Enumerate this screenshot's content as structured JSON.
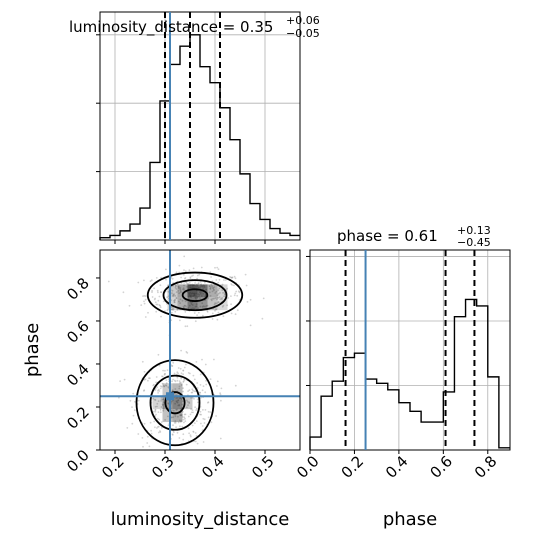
{
  "chart_data": {
    "type": "corner",
    "parameters": [
      "luminosity_distance",
      "phase"
    ],
    "truths": {
      "luminosity_distance": 0.31,
      "phase": 0.25
    },
    "panels": {
      "luminosity_distance_hist": {
        "type": "histogram",
        "title": {
          "main": "luminosity_distance = 0.35",
          "sup": "+0.06",
          "sub": "−0.05"
        },
        "xlim": [
          0.17,
          0.57
        ],
        "quantiles": [
          0.3,
          0.35,
          0.41
        ],
        "bins_x": [
          0.17,
          0.19,
          0.21,
          0.23,
          0.25,
          0.27,
          0.29,
          0.31,
          0.33,
          0.35,
          0.37,
          0.39,
          0.41,
          0.43,
          0.45,
          0.47,
          0.49,
          0.51,
          0.53,
          0.55,
          0.57
        ],
        "counts": [
          0.01,
          0.02,
          0.04,
          0.07,
          0.14,
          0.34,
          0.61,
          0.77,
          0.85,
          0.9,
          0.76,
          0.69,
          0.58,
          0.44,
          0.29,
          0.16,
          0.09,
          0.05,
          0.03,
          0.02
        ]
      },
      "phase_hist": {
        "type": "histogram",
        "title": {
          "main": "phase = 0.61",
          "sup": "+0.13",
          "sub": "−0.45"
        },
        "xlim": [
          0.0,
          0.9
        ],
        "xticks": [
          "0.0",
          "0.2",
          "0.4",
          "0.6",
          "0.8"
        ],
        "xtick_values": [
          0.0,
          0.2,
          0.4,
          0.6,
          0.8
        ],
        "quantiles": [
          0.16,
          0.61,
          0.74
        ],
        "bins_x": [
          0.0,
          0.05,
          0.1,
          0.15,
          0.2,
          0.25,
          0.3,
          0.35,
          0.4,
          0.45,
          0.5,
          0.55,
          0.6,
          0.65,
          0.7,
          0.75,
          0.8,
          0.85,
          0.9
        ],
        "counts": [
          0.06,
          0.25,
          0.32,
          0.43,
          0.45,
          0.33,
          0.31,
          0.28,
          0.22,
          0.18,
          0.13,
          0.13,
          0.27,
          0.62,
          0.7,
          0.67,
          0.34,
          0.01
        ]
      },
      "joint": {
        "type": "scatter+contour",
        "xlabel": "luminosity_distance",
        "ylabel": "phase",
        "xlim": [
          0.17,
          0.57
        ],
        "ylim": [
          0.0,
          0.93
        ],
        "xticks": [
          "0.2",
          "0.3",
          "0.4",
          "0.5"
        ],
        "xtick_values": [
          0.2,
          0.3,
          0.4,
          0.5
        ],
        "yticks": [
          "0.0",
          "0.2",
          "0.4",
          "0.6",
          "0.8"
        ],
        "ytick_values": [
          0.0,
          0.2,
          0.4,
          0.6,
          0.8
        ],
        "modes": [
          {
            "x": 0.36,
            "y": 0.72,
            "sx": 0.045,
            "sy": 0.05
          },
          {
            "x": 0.32,
            "y": 0.22,
            "sx": 0.035,
            "sy": 0.09
          }
        ]
      }
    },
    "colors": {
      "truth": "#4682b4",
      "hist": "#000000",
      "grid": "#b0b0b0",
      "points": "#9e9e9e"
    }
  }
}
